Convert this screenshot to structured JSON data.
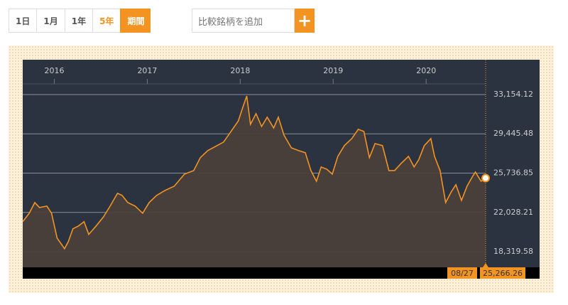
{
  "controls": {
    "ranges": [
      "1日",
      "1月",
      "1年",
      "5年",
      "期間"
    ],
    "highlight_range": 3,
    "active_range": 4,
    "compare_placeholder": "比較銘柄を追加",
    "add_button": "+"
  },
  "chart_data": {
    "type": "area",
    "x": [
      2015.66,
      2015.73,
      2015.79,
      2015.84,
      2015.92,
      2015.97,
      2016.03,
      2016.11,
      2016.15,
      2016.2,
      2016.26,
      2016.32,
      2016.37,
      2016.45,
      2016.53,
      2016.6,
      2016.68,
      2016.73,
      2016.79,
      2016.87,
      2016.95,
      2017.02,
      2017.1,
      2017.19,
      2017.29,
      2017.4,
      2017.5,
      2017.57,
      2017.65,
      2017.75,
      2017.82,
      2017.9,
      2017.98,
      2018.03,
      2018.07,
      2018.11,
      2018.17,
      2018.23,
      2018.29,
      2018.36,
      2018.41,
      2018.47,
      2018.55,
      2018.63,
      2018.7,
      2018.76,
      2018.82,
      2018.87,
      2018.93,
      2018.99,
      2019.05,
      2019.12,
      2019.2,
      2019.27,
      2019.33,
      2019.39,
      2019.45,
      2019.53,
      2019.6,
      2019.66,
      2019.73,
      2019.81,
      2019.87,
      2019.92,
      2019.98,
      2020.05,
      2020.09,
      2020.15,
      2020.21,
      2020.27,
      2020.32,
      2020.38,
      2020.44,
      2020.5,
      2020.53,
      2020.59,
      2020.64
    ],
    "series": [
      {
        "color": "#f39322",
        "values": [
          21150,
          21950,
          22960,
          22490,
          22620,
          21950,
          19610,
          18600,
          19270,
          20480,
          20750,
          21150,
          19950,
          20750,
          21620,
          22620,
          23830,
          23630,
          22960,
          22620,
          21950,
          22960,
          23630,
          24100,
          24500,
          25640,
          25980,
          27190,
          27860,
          28330,
          28660,
          29670,
          30670,
          32010,
          33020,
          30340,
          31350,
          30140,
          31020,
          30000,
          31020,
          29330,
          28120,
          27860,
          27660,
          25980,
          24970,
          26310,
          26110,
          25640,
          27320,
          28330,
          29000,
          29870,
          29670,
          27190,
          28530,
          28330,
          25980,
          25980,
          26650,
          27320,
          26320,
          26990,
          28330,
          29000,
          27320,
          25980,
          22960,
          23970,
          24640,
          23160,
          24500,
          25440,
          25840,
          24970,
          25266.26
        ]
      }
    ],
    "xlim": [
      2015.66,
      2020.64
    ],
    "xticks": [
      2016,
      2017,
      2018,
      2019,
      2020
    ],
    "ylim": [
      16844,
      36440
    ],
    "yticks": [
      {
        "value": 18319.58,
        "label": "18,319.58"
      },
      {
        "value": 22028.21,
        "label": "22,028.21"
      },
      {
        "value": 25736.85,
        "label": "25,736.85"
      },
      {
        "value": 29445.48,
        "label": "29,445.48"
      },
      {
        "value": 33154.12,
        "label": "33,154.12"
      }
    ],
    "grid": true,
    "current": {
      "date_label": "08/27",
      "value": 25266.26,
      "value_label": "25,266.26"
    }
  }
}
